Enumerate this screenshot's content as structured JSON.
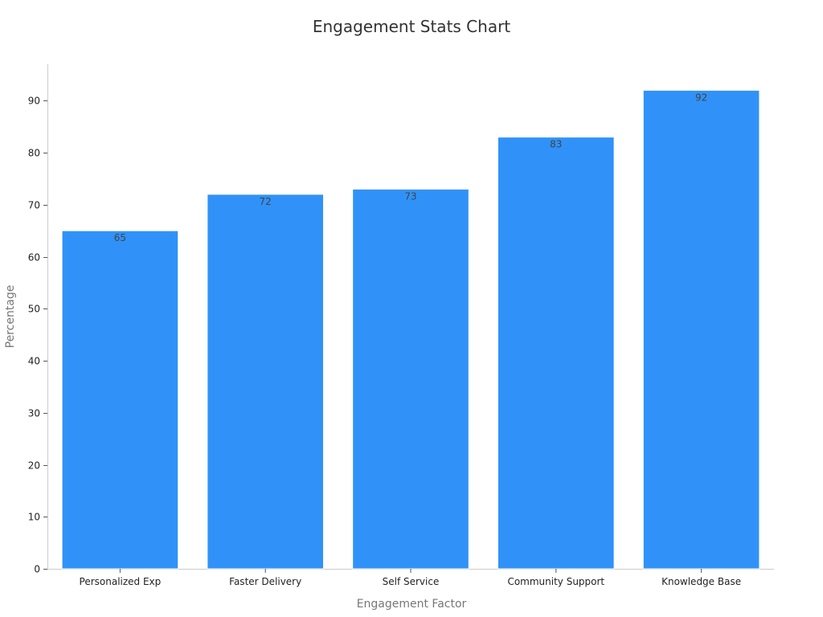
{
  "chart_data": {
    "type": "bar",
    "title": "Engagement Stats Chart",
    "xlabel": "Engagement Factor",
    "ylabel": "Percentage",
    "categories": [
      "Personalized Exp",
      "Faster Delivery",
      "Self Service",
      "Community Support",
      "Knowledge Base"
    ],
    "values": [
      65,
      72,
      73,
      83,
      92
    ],
    "ylim": [
      0,
      97
    ],
    "yticks": [
      0,
      10,
      20,
      30,
      40,
      50,
      60,
      70,
      80,
      90
    ],
    "bar_color": "#3092f8",
    "grid": false,
    "legend": "none"
  }
}
